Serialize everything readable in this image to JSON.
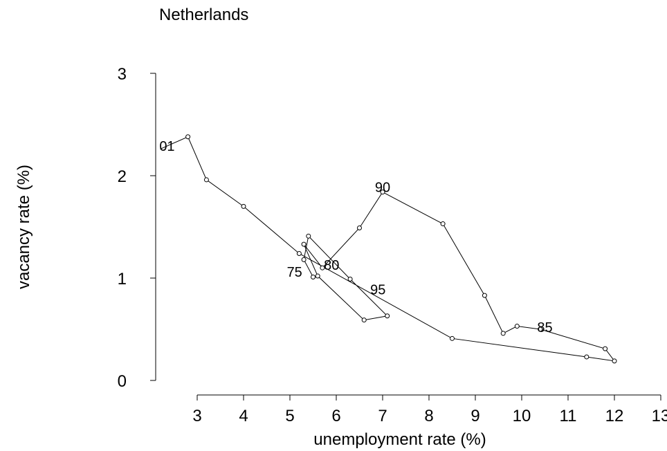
{
  "chart_data": {
    "type": "line",
    "title": "Netherlands",
    "xlabel": "unemployment rate (%)",
    "ylabel": "vacancy rate (%)",
    "xlim": [
      2.2,
      13.1
    ],
    "ylim": [
      -0.15,
      3.1
    ],
    "xticks": [
      3,
      4,
      5,
      6,
      7,
      8,
      9,
      10,
      11,
      12,
      13
    ],
    "yticks": [
      0,
      1,
      2,
      3
    ],
    "grid": false,
    "markers": "open-circle",
    "series": [
      {
        "x": [
          5.5,
          5.3,
          5.4,
          6.3,
          7.1,
          6.6,
          5.6,
          5.3,
          5.7,
          6.5,
          7.0,
          8.3,
          9.2,
          9.6,
          9.9,
          10.4,
          11.8,
          12.0,
          11.4,
          8.5,
          5.2,
          4.0,
          3.2,
          2.8,
          2.2
        ],
        "y": [
          1.01,
          1.18,
          1.41,
          0.99,
          0.63,
          0.59,
          1.02,
          1.33,
          1.1,
          1.49,
          1.84,
          1.53,
          0.83,
          0.46,
          0.53,
          0.5,
          0.31,
          0.19,
          0.23,
          0.41,
          1.24,
          1.7,
          1.96,
          2.38,
          2.26
        ]
      }
    ],
    "point_labels": [
      {
        "text": "75",
        "x": 5.1,
        "y": 1.06
      },
      {
        "text": "80",
        "x": 5.9,
        "y": 1.13
      },
      {
        "text": "85",
        "x": 10.5,
        "y": 0.52
      },
      {
        "text": "90",
        "x": 7.0,
        "y": 1.89
      },
      {
        "text": "95",
        "x": 6.9,
        "y": 0.89
      },
      {
        "text": "01",
        "x": 2.35,
        "y": 2.29
      }
    ]
  }
}
